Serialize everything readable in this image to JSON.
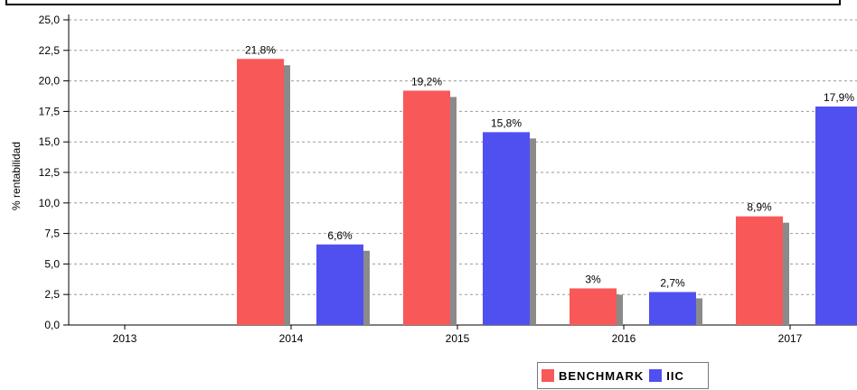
{
  "chart_data": {
    "type": "bar",
    "ylabel": "% rentabilidad",
    "categories": [
      "2013",
      "2014",
      "2015",
      "2016",
      "2017"
    ],
    "ylim": [
      0,
      25
    ],
    "y_ticks": [
      "0,0",
      "2,5",
      "5,0",
      "7,5",
      "10,0",
      "12,5",
      "15,0",
      "17,5",
      "20,0",
      "22,5",
      "25,0"
    ],
    "y_tick_values": [
      0,
      2.5,
      5,
      7.5,
      10,
      12.5,
      15,
      17.5,
      20,
      22.5,
      25
    ],
    "grid": true,
    "legend_position": "bottom-right",
    "series": [
      {
        "name": "BENCHMARK",
        "color": "#f85858",
        "values": [
          null,
          21.8,
          19.2,
          3,
          8.9
        ],
        "labels": [
          null,
          "21,8%",
          "19,2%",
          "3%",
          "8,9%"
        ]
      },
      {
        "name": "IIC",
        "color": "#5050f0",
        "values": [
          null,
          6.6,
          15.8,
          2.7,
          17.9
        ],
        "labels": [
          null,
          "6,6%",
          "15,8%",
          "2,7%",
          "17,9%"
        ]
      }
    ]
  }
}
